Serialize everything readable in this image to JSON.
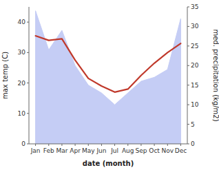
{
  "chart_data": {
    "type": "line",
    "categories": [
      "Jan",
      "Feb",
      "Mar",
      "Apr",
      "May",
      "Jun",
      "Jul",
      "Aug",
      "Sep",
      "Oct",
      "Nov",
      "Dec"
    ],
    "xlabel": "date (month)",
    "ylabel": "max temp (C)",
    "y2label": "med. precipitation (kg/m2)",
    "series": [
      {
        "type": "area",
        "axis": "y2",
        "color": "#c5cdf5",
        "values": [
          34,
          24,
          29,
          20,
          15,
          13,
          10,
          13,
          16,
          17,
          19,
          32
        ]
      },
      {
        "type": "line",
        "color": "#c0392b",
        "values": [
          35.5,
          34.0,
          34.5,
          27.5,
          21.5,
          19.0,
          17.0,
          18.0,
          22.5,
          26.5,
          30.0,
          33.0
        ]
      }
    ],
    "ylim": [
      0,
      45
    ],
    "yticks": [
      0,
      10,
      20,
      30,
      40
    ],
    "y2lim": [
      0,
      35
    ],
    "y2ticks": [
      0,
      5,
      10,
      15,
      20,
      25,
      30,
      35
    ],
    "grid": false
  }
}
